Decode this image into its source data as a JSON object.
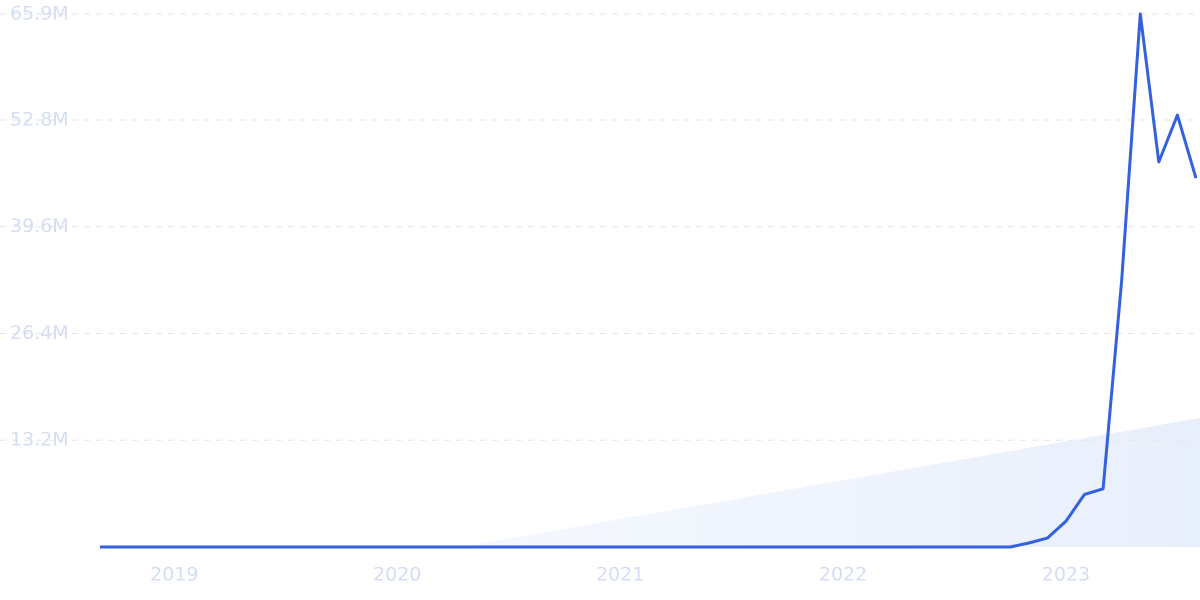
{
  "chart_data": {
    "type": "line",
    "categories": [
      null,
      null,
      null,
      null,
      "2019",
      null,
      null,
      null,
      null,
      null,
      null,
      null,
      null,
      null,
      null,
      null,
      "2020",
      null,
      null,
      null,
      null,
      null,
      null,
      null,
      null,
      null,
      null,
      null,
      "2021",
      null,
      null,
      null,
      null,
      null,
      null,
      null,
      null,
      null,
      null,
      null,
      "2022",
      null,
      null,
      null,
      null,
      null,
      null,
      null,
      null,
      null,
      null,
      null,
      "2023",
      null,
      null,
      null,
      null,
      null,
      null,
      null
    ],
    "values": [
      0,
      0,
      0,
      0,
      0,
      0,
      0,
      0,
      0,
      0,
      0,
      0,
      0,
      0,
      0,
      0,
      0,
      0,
      0,
      0,
      0,
      0,
      0,
      0,
      0,
      0,
      0,
      0,
      0,
      0,
      0,
      0,
      0,
      0,
      0,
      0,
      0,
      0,
      0,
      0,
      0,
      0,
      0,
      0,
      0,
      0,
      0,
      0,
      0,
      0,
      500000,
      1100000,
      3200000,
      6500000,
      7200000,
      33000000,
      65900000,
      47600000,
      53400000,
      45600000
    ],
    "color": "#3461de",
    "ylim": [
      0,
      65900000
    ],
    "yticks": [
      {
        "value": 13200000,
        "label": "13.2M"
      },
      {
        "value": 26400000,
        "label": "26.4M"
      },
      {
        "value": 39600000,
        "label": "39.6M"
      },
      {
        "value": 52800000,
        "label": "52.8M"
      },
      {
        "value": 65900000,
        "label": "65.9M"
      }
    ],
    "grid": true
  }
}
